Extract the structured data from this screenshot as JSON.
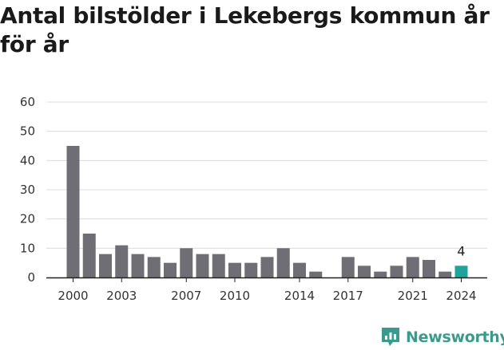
{
  "chart_data": {
    "type": "bar",
    "title": "Antal bilstölder i Lekebergs kommun år för år",
    "xlabel": "",
    "ylabel": "",
    "categories": [
      "2000",
      "2001",
      "2002",
      "2003",
      "2004",
      "2005",
      "2006",
      "2007",
      "2008",
      "2009",
      "2010",
      "2011",
      "2012",
      "2013",
      "2014",
      "2015",
      "2016",
      "2017",
      "2018",
      "2019",
      "2020",
      "2021",
      "2022",
      "2023",
      "2024"
    ],
    "values": [
      45,
      15,
      8,
      11,
      8,
      7,
      5,
      10,
      8,
      8,
      5,
      5,
      7,
      10,
      5,
      2,
      0,
      7,
      4,
      2,
      4,
      7,
      6,
      2,
      4
    ],
    "x_tick_labels": [
      "2000",
      "2003",
      "2007",
      "2010",
      "2014",
      "2017",
      "2021",
      "2024"
    ],
    "y_ticks": [
      "0",
      "10",
      "20",
      "30",
      "40",
      "50",
      "60"
    ],
    "ylim": [
      0,
      60
    ],
    "grid": true,
    "highlight": {
      "category": "2024",
      "label": "4"
    },
    "colors": {
      "bar": "#6f6e74",
      "highlight": "#1fa39a",
      "grid": "#dcdcdc",
      "axis": "#222222"
    }
  },
  "brand": {
    "name": "Newsworthy",
    "color": "#3a9b8c",
    "icon": "newsworthy-chart-icon"
  }
}
